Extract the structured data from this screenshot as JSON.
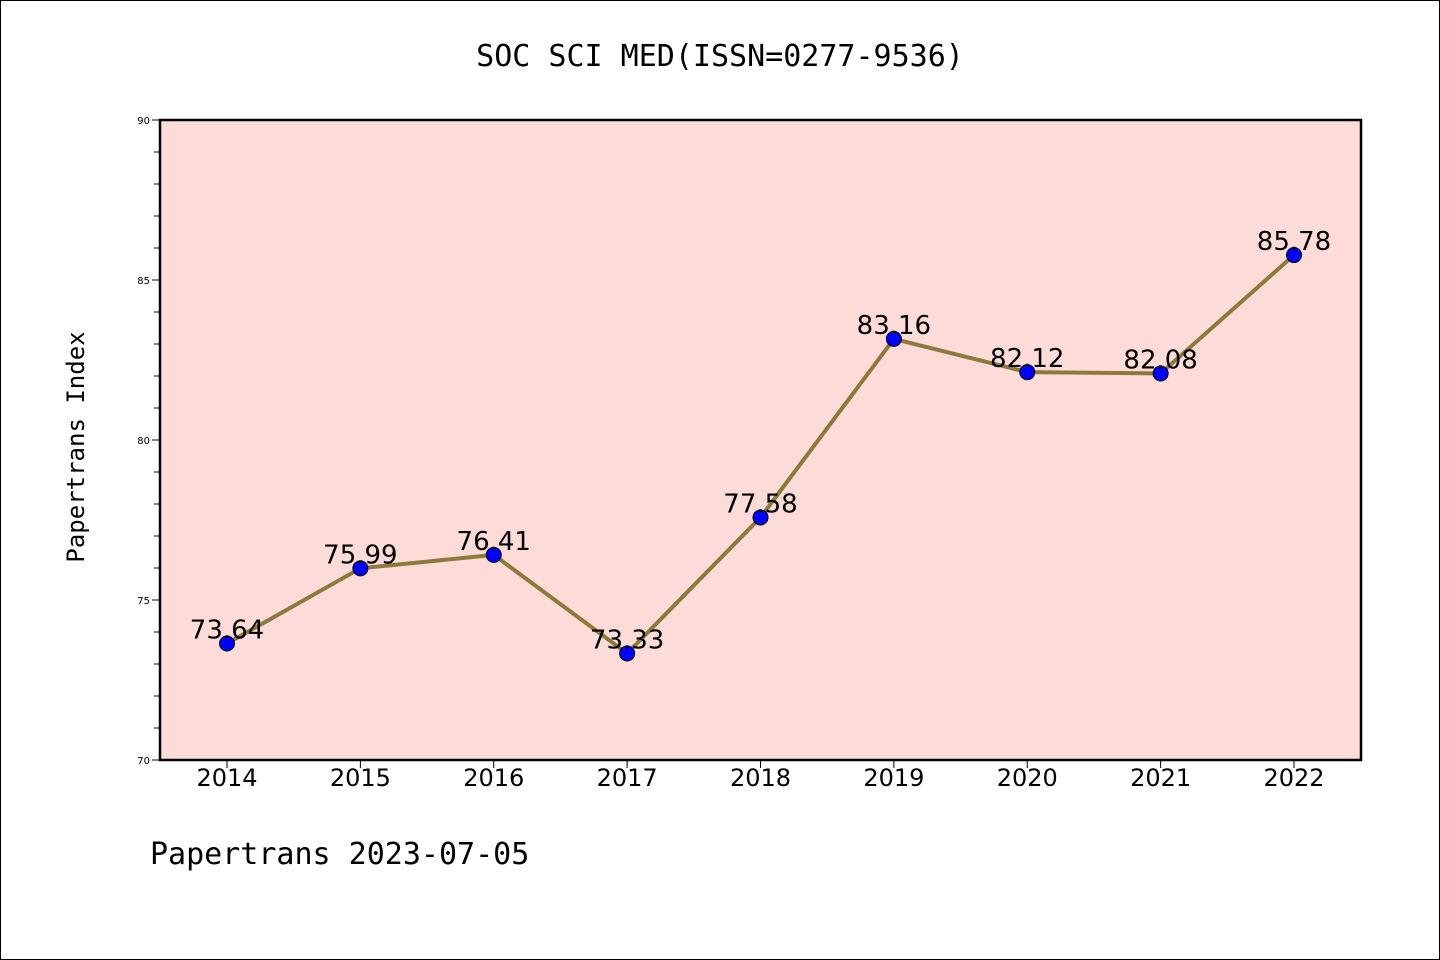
{
  "chart_data": {
    "type": "line",
    "title": "SOC SCI MED(ISSN=0277-9536)",
    "xlabel": "",
    "ylabel": "Papertrans Index",
    "footer": "Papertrans 2023-07-05",
    "categories": [
      "2014",
      "2015",
      "2016",
      "2017",
      "2018",
      "2019",
      "2020",
      "2021",
      "2022"
    ],
    "values": [
      73.64,
      75.99,
      76.41,
      73.33,
      77.58,
      83.16,
      82.12,
      82.08,
      85.78
    ],
    "value_labels": [
      "73.64",
      "75.99",
      "76.41",
      "73.33",
      "77.58",
      "83.16",
      "82.12",
      "82.08",
      "85.78"
    ],
    "ylim": [
      70,
      90
    ],
    "yticks": [
      70,
      75,
      80,
      85,
      90
    ],
    "grid": false,
    "colors": {
      "plot_background": "#fddbd9",
      "line": "#8b7a3a",
      "marker": "#0000ff"
    }
  }
}
